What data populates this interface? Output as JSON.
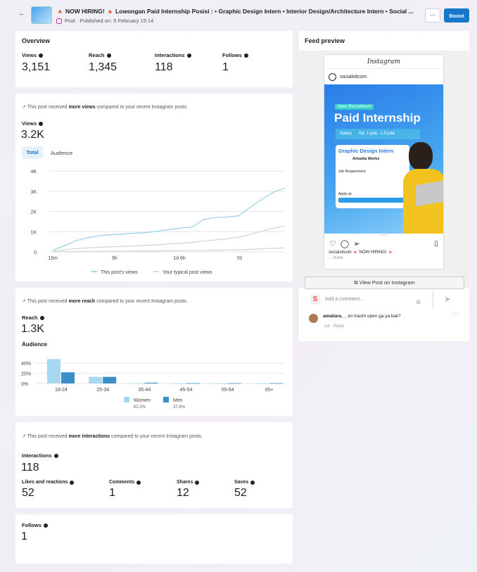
{
  "header": {
    "back_icon": "arrow-left-icon",
    "title": "🔺 NOW HIRING! 🔺 Lowongan Paid Internship Posisi :  • Graphic Design Intern  • Interior Design/Architecture Intern  • Social ...",
    "subtitle": "Post · Published on: 5 February 15:14",
    "more_label": "···",
    "boost_label": "Boost"
  },
  "overview": {
    "title": "Overview",
    "metrics": [
      {
        "label": "Views",
        "value": "3,151"
      },
      {
        "label": "Reach",
        "value": "1,345"
      },
      {
        "label": "Interactions",
        "value": "118"
      },
      {
        "label": "Follows",
        "value": "1"
      }
    ]
  },
  "views": {
    "note_pre": "This post received ",
    "note_bold": "more views",
    "note_post": " compared to your recent Instagram posts.",
    "label": "Views",
    "value": "3.2K",
    "tabs": [
      "Total",
      "Audience"
    ]
  },
  "reach": {
    "note_pre": "This post received ",
    "note_bold": "more reach",
    "note_post": " compared to your recent Instagram posts.",
    "label": "Reach",
    "value": "1.3K",
    "audience_label": "Audience"
  },
  "interactions": {
    "note_pre": "This post received ",
    "note_bold": "more interactions",
    "note_post": " compared to your recent Instagram posts.",
    "label": "Interactions",
    "value": "118",
    "metrics": [
      {
        "label": "Likes and reactions",
        "value": "52"
      },
      {
        "label": "Comments",
        "value": "1"
      },
      {
        "label": "Shares",
        "value": "12"
      },
      {
        "label": "Saves",
        "value": "52"
      }
    ]
  },
  "follows": {
    "label": "Follows",
    "value": "1"
  },
  "feed": {
    "title": "Feed preview",
    "app_name": "Instagram",
    "username": "socialvitcom",
    "img_badge": "Open Recruitment",
    "img_title": "Paid Internship",
    "img_salary_label": "Salary",
    "img_salary": "Rp. 1 juta - 1.5 juta",
    "img_role": "Graphic Design Intern",
    "img_company": "Arkadia Works",
    "img_req": "Job Requirement:",
    "img_apply": "Apply at:",
    "caption_user": "socialvitcom",
    "caption": "🔺 NOW HIRING! 🔺",
    "caption_more": "... more",
    "view_button": "View Post on Instagram",
    "comment_placeholder": "Add a comment...",
    "comment_user": "amaliara__",
    "comment_text": "ini masih open ga ya kak?",
    "comment_time": "1w",
    "comment_reply": "Reply"
  },
  "chart_data": [
    {
      "type": "line",
      "x_ticks": [
        "15m",
        "9h",
        "1d 6h",
        "7d"
      ],
      "y_ticks": [
        "0",
        "1K",
        "2K",
        "3K",
        "4K"
      ],
      "ylim": [
        0,
        4000
      ],
      "grid": true,
      "legend": "bottom",
      "colors": {
        "post": "#9fd3ea",
        "typical": "#d6d6d6"
      },
      "x": [
        0,
        1,
        2,
        3,
        4,
        5,
        6,
        7,
        8,
        9,
        10,
        11,
        12,
        13,
        14,
        15,
        16,
        17,
        18,
        19,
        20
      ],
      "series": [
        {
          "name": "This post's views",
          "values": [
            80,
            300,
            550,
            700,
            800,
            850,
            880,
            920,
            950,
            1020,
            1100,
            1180,
            1220,
            1600,
            1700,
            1720,
            1780,
            2200,
            2600,
            2950,
            3150
          ]
        },
        {
          "name": "Your typical post views",
          "values": [
            40,
            100,
            160,
            200,
            230,
            250,
            270,
            300,
            320,
            350,
            390,
            430,
            470,
            530,
            590,
            640,
            720,
            860,
            1030,
            1170,
            1280
          ]
        },
        {
          "values": [
            0,
            10,
            15,
            20,
            25,
            30,
            35,
            40,
            45,
            50,
            55,
            60,
            65,
            70,
            80,
            90,
            100,
            120,
            150,
            180,
            200
          ]
        }
      ]
    },
    {
      "type": "bar",
      "categories": [
        "18-24",
        "25-34",
        "35-44",
        "45-54",
        "55-64",
        "65+"
      ],
      "y_ticks": [
        "0%",
        "20%",
        "40%"
      ],
      "ylim": [
        0,
        50
      ],
      "grid": true,
      "legend": "bottom",
      "series": [
        {
          "name": "Women",
          "share": "62.2%",
          "color": "#a8d8f0",
          "values": [
            48,
            13,
            0.5,
            0.3,
            0.3,
            0.3
          ]
        },
        {
          "name": "Men",
          "share": "37.8%",
          "color": "#3b8fc9",
          "values": [
            22,
            13,
            1.5,
            0.5,
            0.5,
            0.5
          ]
        }
      ]
    }
  ]
}
